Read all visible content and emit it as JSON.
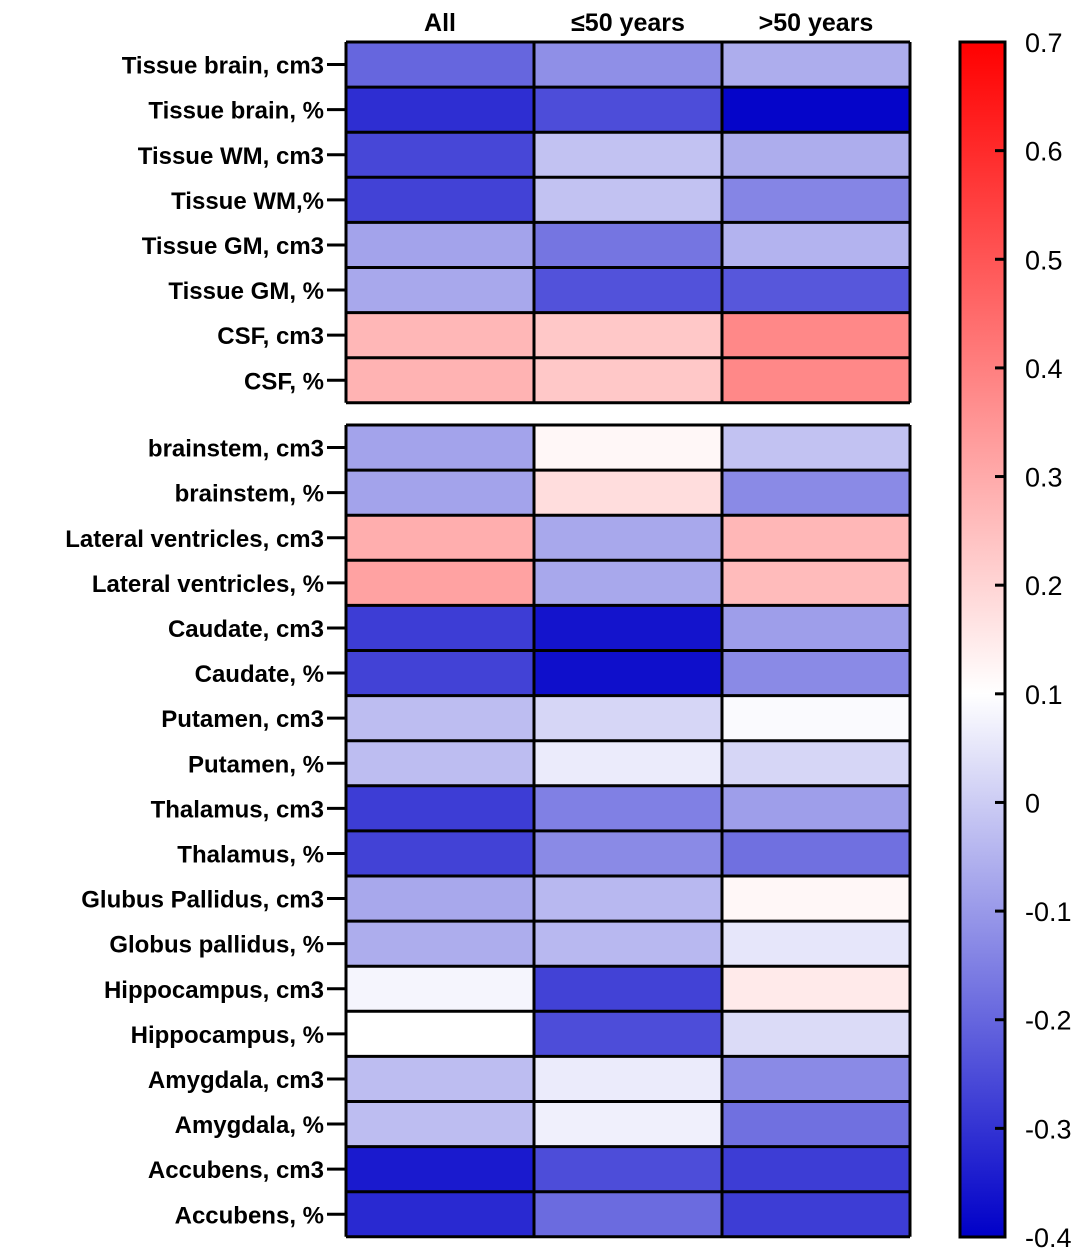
{
  "chart_data": {
    "type": "heatmap",
    "columns": [
      "All",
      "≤50 years",
      ">50 years"
    ],
    "groups": [
      {
        "rows": [
          {
            "label": "Tissue brain, cm3",
            "values": [
              -0.2,
              -0.12,
              -0.06
            ]
          },
          {
            "label": "Tissue brain, %",
            "values": [
              -0.31,
              -0.25,
              -0.39
            ]
          },
          {
            "label": "Tissue WM, cm3",
            "values": [
              -0.26,
              -0.02,
              -0.06
            ]
          },
          {
            "label": "Tissue WM,%",
            "values": [
              -0.27,
              -0.02,
              -0.14
            ]
          },
          {
            "label": "Tissue GM, cm3",
            "values": [
              -0.08,
              -0.17,
              -0.05
            ]
          },
          {
            "label": "Tissue GM, %",
            "values": [
              -0.07,
              -0.24,
              -0.23
            ]
          },
          {
            "label": "CSF, cm3",
            "values": [
              0.27,
              0.23,
              0.38
            ]
          },
          {
            "label": "CSF, %",
            "values": [
              0.28,
              0.23,
              0.38
            ]
          }
        ]
      },
      {
        "rows": [
          {
            "label": "brainstem, cm3",
            "values": [
              -0.08,
              0.12,
              -0.02
            ]
          },
          {
            "label": "brainstem, %",
            "values": [
              -0.08,
              0.18,
              -0.13
            ]
          },
          {
            "label": "Lateral ventricles, cm3",
            "values": [
              0.29,
              -0.07,
              0.27
            ]
          },
          {
            "label": "Lateral ventricles, %",
            "values": [
              0.32,
              -0.07,
              0.26
            ]
          },
          {
            "label": "Caudate, cm3",
            "values": [
              -0.28,
              -0.36,
              -0.09
            ]
          },
          {
            "label": "Caudate, %",
            "values": [
              -0.27,
              -0.37,
              -0.13
            ]
          },
          {
            "label": "Putamen, cm3",
            "values": [
              -0.03,
              0.02,
              0.09
            ]
          },
          {
            "label": "Putamen, %",
            "values": [
              -0.03,
              0.06,
              0.02
            ]
          },
          {
            "label": "Thalamus, cm3",
            "values": [
              -0.28,
              -0.15,
              -0.09
            ]
          },
          {
            "label": "Thalamus, %",
            "values": [
              -0.27,
              -0.13,
              -0.18
            ]
          },
          {
            "label": "Glubus Pallidus, cm3",
            "values": [
              -0.07,
              -0.04,
              0.12
            ]
          },
          {
            "label": "Globus pallidus, %",
            "values": [
              -0.06,
              -0.04,
              0.05
            ]
          },
          {
            "label": "Hippocampus, cm3",
            "values": [
              0.08,
              -0.27,
              0.15
            ]
          },
          {
            "label": "Hippocampus, %",
            "values": [
              0.1,
              -0.25,
              0.03
            ]
          },
          {
            "label": "Amygdala, cm3",
            "values": [
              -0.03,
              0.06,
              -0.13
            ]
          },
          {
            "label": "Amygdala, %",
            "values": [
              -0.03,
              0.07,
              -0.18
            ]
          },
          {
            "label": "Accubens, cm3",
            "values": [
              -0.35,
              -0.25,
              -0.28
            ]
          },
          {
            "label": "Accubens, %",
            "values": [
              -0.32,
              -0.19,
              -0.28
            ]
          }
        ]
      }
    ],
    "colorbar": {
      "range": [
        -0.4,
        0.7
      ],
      "midpoint": 0.1,
      "ticks": [
        -0.4,
        -0.3,
        -0.2,
        -0.1,
        0,
        0.1,
        0.2,
        0.3,
        0.4,
        0.5,
        0.6,
        0.7
      ],
      "tick_labels": [
        "-0.4",
        "-0.3",
        "-0.2",
        "-0.1",
        "0",
        "0.1",
        "0.2",
        "0.3",
        "0.4",
        "0.5",
        "0.6",
        "0.7"
      ],
      "colors": {
        "low": "#0000c8",
        "mid": "#ffffff",
        "high": "#ff0000"
      }
    },
    "title": "",
    "xlabel": "",
    "ylabel": "",
    "legend": "colorbar-right"
  }
}
